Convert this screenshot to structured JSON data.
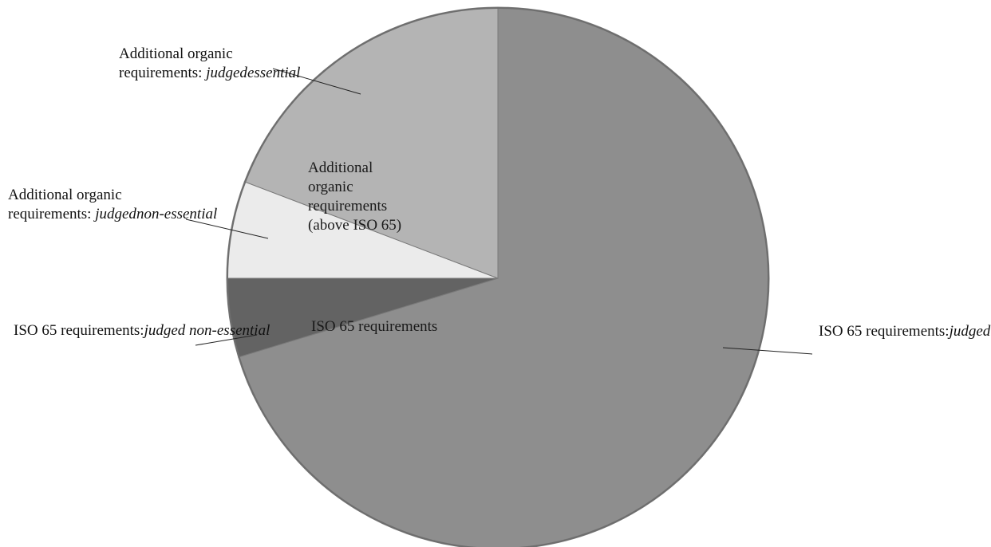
{
  "chart_data": {
    "type": "pie",
    "title": "",
    "start_angle_deg": 90,
    "direction": "clockwise",
    "groups": [
      {
        "name_lines": [
          "ISO 65 requirements"
        ],
        "slices": [
          0,
          1
        ]
      },
      {
        "name_lines": [
          "Additional",
          "organic",
          "requirements",
          "(above ISO 65)"
        ],
        "slices": [
          2,
          3
        ]
      }
    ],
    "slices": [
      {
        "label_lines": [
          {
            "text": "ISO 65 requirements:",
            "em": ""
          },
          {
            "text": "",
            "em": "judged as minimum"
          }
        ],
        "value": 70.3,
        "color": "#8e8e8e"
      },
      {
        "label_lines": [
          {
            "text": "ISO 65 requirements:",
            "em": ""
          },
          {
            "text": "",
            "em": "judged non-essential"
          }
        ],
        "value": 4.7,
        "color": "#636363"
      },
      {
        "label_lines": [
          {
            "text": "Additional organic",
            "em": ""
          },
          {
            "text": "requirements: ",
            "em": "judged"
          },
          {
            "text": "",
            "em": "non-essential"
          }
        ],
        "value": 5.8,
        "color": "#ebebeb"
      },
      {
        "label_lines": [
          {
            "text": "Additional organic",
            "em": ""
          },
          {
            "text": "requirements: ",
            "em": "judged"
          },
          {
            "text": "",
            "em": "essential"
          }
        ],
        "value": 19.2,
        "color": "#b4b4b4"
      }
    ]
  }
}
